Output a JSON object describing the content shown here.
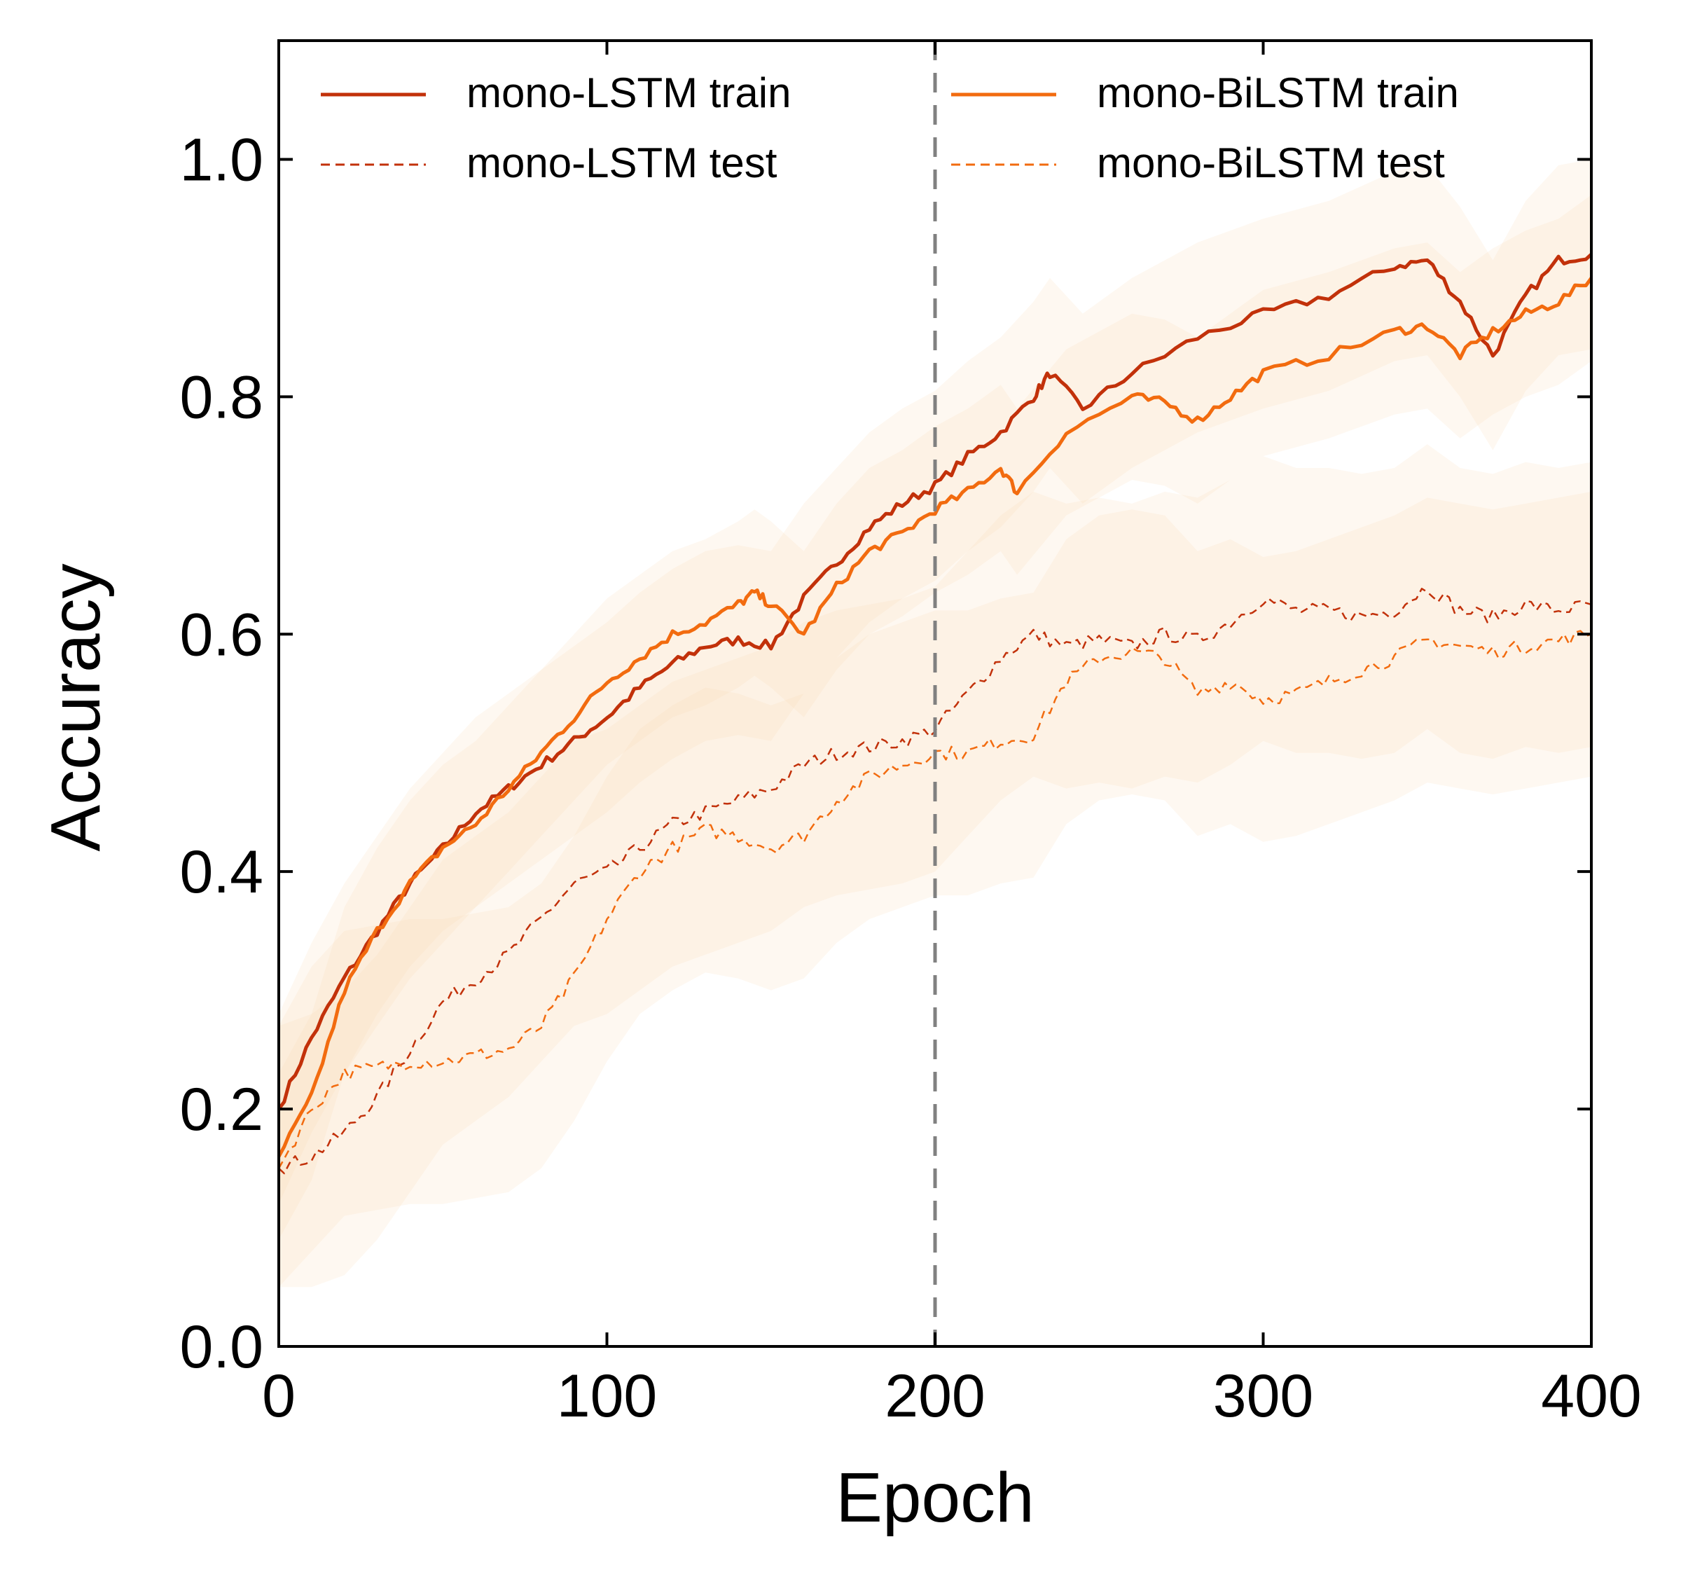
{
  "chart_data": {
    "type": "line",
    "xlabel": "Epoch",
    "ylabel": "Accuracy",
    "xlim": [
      0,
      400
    ],
    "ylim": [
      0,
      1.1
    ],
    "x_ticks": [
      "0",
      "100",
      "200",
      "300",
      "400"
    ],
    "y_ticks": [
      "0.0",
      "0.2",
      "0.4",
      "0.6",
      "0.8",
      "1.0"
    ],
    "grid": false,
    "vline": {
      "x": 200,
      "color": "#808080",
      "style": "dashed"
    },
    "legend": {
      "placement": "top",
      "columns": 2
    },
    "series": [
      {
        "name": "mono-LSTM train",
        "color": "#c2310a",
        "style": "solid",
        "x": [
          0,
          10,
          20,
          30,
          40,
          50,
          60,
          70,
          80,
          90,
          100,
          110,
          120,
          130,
          140,
          150,
          160,
          170,
          180,
          190,
          200,
          210,
          220,
          230,
          235,
          245,
          260,
          280,
          300,
          320,
          340,
          350,
          360,
          370,
          380,
          390,
          400
        ],
        "y": [
          0.2,
          0.26,
          0.31,
          0.35,
          0.39,
          0.42,
          0.45,
          0.47,
          0.49,
          0.51,
          0.53,
          0.555,
          0.575,
          0.59,
          0.595,
          0.59,
          0.63,
          0.66,
          0.69,
          0.71,
          0.725,
          0.75,
          0.77,
          0.8,
          0.82,
          0.79,
          0.82,
          0.85,
          0.87,
          0.885,
          0.91,
          0.915,
          0.88,
          0.835,
          0.885,
          0.915,
          0.92
        ],
        "band": 0.08
      },
      {
        "name": "mono-LSTM test",
        "color": "#c2310a",
        "style": "dashed",
        "x": [
          0,
          10,
          20,
          30,
          40,
          50,
          60,
          70,
          80,
          90,
          100,
          110,
          120,
          130,
          140,
          150,
          160,
          170,
          180,
          190,
          200,
          210,
          220,
          230,
          240,
          250,
          260,
          270,
          280,
          290,
          300,
          310,
          320,
          330,
          340,
          350,
          360,
          370,
          380,
          390,
          400
        ],
        "y": [
          0.15,
          0.16,
          0.18,
          0.21,
          0.25,
          0.29,
          0.31,
          0.33,
          0.36,
          0.39,
          0.4,
          0.42,
          0.44,
          0.45,
          0.46,
          0.47,
          0.49,
          0.5,
          0.505,
          0.51,
          0.52,
          0.55,
          0.58,
          0.6,
          0.59,
          0.595,
          0.59,
          0.6,
          0.595,
          0.61,
          0.63,
          0.62,
          0.62,
          0.615,
          0.62,
          0.64,
          0.62,
          0.615,
          0.625,
          0.62,
          0.625
        ],
        "band": 0.12
      },
      {
        "name": "mono-BiLSTM train",
        "color": "#f26b0f",
        "style": "solid",
        "x": [
          0,
          10,
          20,
          30,
          40,
          50,
          60,
          70,
          80,
          90,
          100,
          110,
          120,
          130,
          140,
          145,
          150,
          160,
          170,
          180,
          190,
          200,
          210,
          220,
          225,
          240,
          260,
          270,
          280,
          290,
          300,
          320,
          340,
          350,
          360,
          370,
          380,
          390,
          400
        ],
        "y": [
          0.16,
          0.21,
          0.3,
          0.35,
          0.39,
          0.42,
          0.44,
          0.47,
          0.5,
          0.53,
          0.56,
          0.58,
          0.6,
          0.61,
          0.625,
          0.635,
          0.625,
          0.6,
          0.64,
          0.67,
          0.685,
          0.705,
          0.72,
          0.74,
          0.72,
          0.77,
          0.8,
          0.795,
          0.78,
          0.8,
          0.82,
          0.835,
          0.855,
          0.86,
          0.835,
          0.855,
          0.87,
          0.88,
          0.9
        ],
        "band": 0.07
      },
      {
        "name": "mono-BiLSTM test",
        "color": "#f26b0f",
        "style": "dashed",
        "x": [
          0,
          10,
          20,
          30,
          40,
          50,
          60,
          70,
          80,
          90,
          100,
          110,
          120,
          130,
          140,
          150,
          160,
          170,
          180,
          190,
          200,
          210,
          220,
          230,
          240,
          250,
          260,
          270,
          280,
          290,
          300,
          310,
          320,
          330,
          340,
          350,
          360,
          370,
          380,
          390,
          400
        ],
        "y": [
          0.15,
          0.2,
          0.23,
          0.235,
          0.24,
          0.24,
          0.245,
          0.25,
          0.27,
          0.31,
          0.36,
          0.4,
          0.42,
          0.435,
          0.43,
          0.42,
          0.43,
          0.46,
          0.48,
          0.49,
          0.5,
          0.5,
          0.51,
          0.515,
          0.56,
          0.58,
          0.585,
          0.58,
          0.55,
          0.56,
          0.545,
          0.55,
          0.56,
          0.57,
          0.58,
          0.595,
          0.59,
          0.585,
          0.59,
          0.595,
          0.6
        ],
        "band": 0.12
      }
    ]
  }
}
